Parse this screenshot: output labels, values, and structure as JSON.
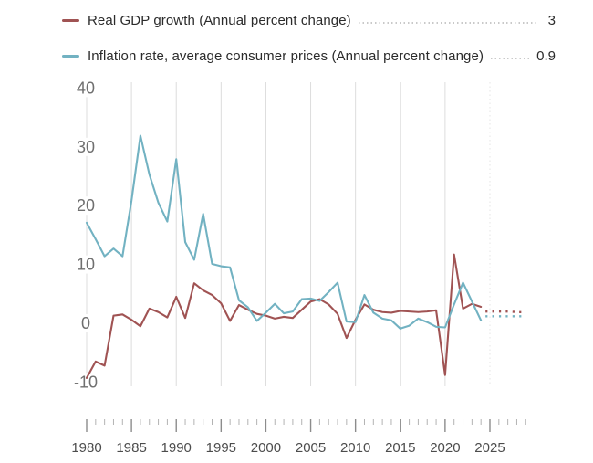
{
  "legend": {
    "items": [
      {
        "label": "Real GDP growth (Annual percent change)",
        "value": "3",
        "color": "#a05353"
      },
      {
        "label": "Inflation rate, average consumer prices (Annual percent change)",
        "value": "0.9",
        "color": "#72b2c2"
      }
    ]
  },
  "chart_data": {
    "type": "line",
    "x_start": 1980,
    "x_axis_end": 2029,
    "forecast_start": 2024,
    "ylim": [
      -10,
      40
    ],
    "yticks": [
      40,
      30,
      20,
      10,
      0,
      -10
    ],
    "xticks_major": [
      1980,
      1985,
      1990,
      1995,
      2000,
      2005,
      2010,
      2015,
      2020,
      2025
    ],
    "grid": "vertical-only",
    "grid_years_solid": [
      1980,
      1985,
      1990,
      1995,
      2000,
      2005,
      2010,
      2015,
      2020
    ],
    "grid_years_dotted": [
      2025
    ],
    "legend_position": "top",
    "series": [
      {
        "name": "Real GDP growth (Annual percent change)",
        "color": "#a05353",
        "values": [
          -9.3,
          -6.5,
          -7.2,
          1.3,
          1.5,
          0.6,
          -0.5,
          2.5,
          1.9,
          1.0,
          4.5,
          0.9,
          6.8,
          5.6,
          4.8,
          3.4,
          0.4,
          3.1,
          2.3,
          1.6,
          1.3,
          0.8,
          1.1,
          0.9,
          2.3,
          3.7,
          4.1,
          3.2,
          1.6,
          -2.5,
          0.6,
          3.2,
          2.3,
          1.9,
          1.8,
          2.1,
          2.0,
          1.9,
          2.0,
          2.2,
          -8.8,
          11.7,
          2.5,
          3.3,
          2.8
        ],
        "forecast_values": [
          2.0,
          2.0,
          2.0,
          1.9,
          1.9
        ]
      },
      {
        "name": "Inflation rate, average consumer prices (Annual percent change)",
        "color": "#72b2c2",
        "values": [
          17.1,
          14.3,
          11.4,
          12.7,
          11.4,
          20.8,
          31.9,
          25.3,
          20.5,
          17.3,
          27.9,
          13.8,
          10.8,
          18.6,
          10.1,
          9.7,
          9.5,
          3.9,
          2.7,
          0.4,
          1.8,
          3.3,
          1.7,
          2.0,
          4.1,
          4.2,
          3.8,
          5.3,
          6.9,
          0.3,
          0.2,
          4.8,
          1.8,
          0.8,
          0.5,
          -0.9,
          -0.4,
          0.8,
          0.2,
          -0.6,
          -0.7,
          3.2,
          6.9,
          3.7,
          0.5
        ],
        "forecast_values": [
          1.2,
          1.2,
          1.2,
          1.2,
          1.2
        ]
      }
    ]
  },
  "colors": {
    "background": "#ffffff",
    "gridline": "#dcdcdc",
    "gridline_dotted": "#e4e4e4",
    "y_label": "#6f6f6f",
    "x_label": "#4c4c4c",
    "tick_major": "#8c8c8c",
    "tick_minor": "#b3b3b3",
    "leader_dots": "#c9c9c9",
    "legend_text": "#2b2b2b"
  }
}
